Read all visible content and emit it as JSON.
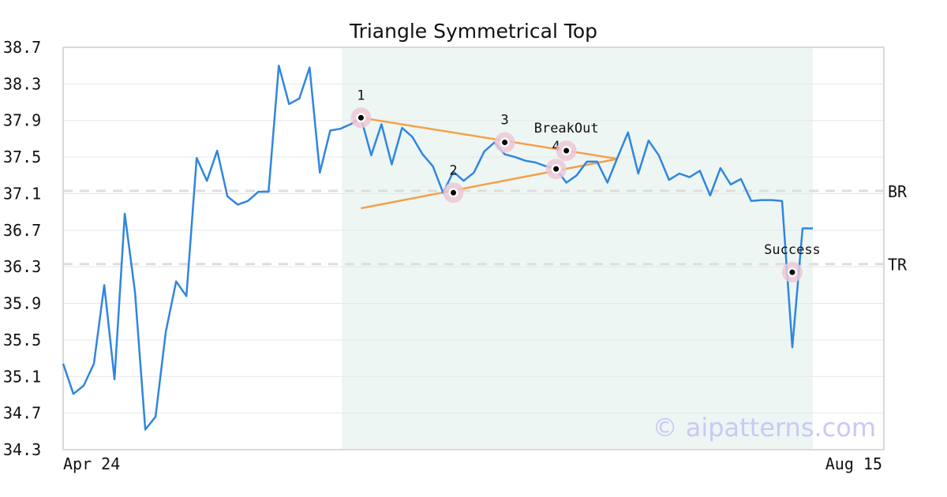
{
  "chart_data": {
    "type": "line",
    "title": "Triangle Symmetrical Top",
    "xlabel": "",
    "ylabel": "",
    "ylim": [
      34.3,
      38.7
    ],
    "y_ticks": [
      "34.3",
      "34.7",
      "35.1",
      "35.5",
      "35.9",
      "36.3",
      "36.7",
      "37.1",
      "37.5",
      "37.9",
      "38.3",
      "38.7"
    ],
    "x_tick_labels": [
      "Apr 24",
      "Aug 15"
    ],
    "grid": "horizontal",
    "highlight_range": [
      27,
      73
    ],
    "series": [
      {
        "values": [
          35.24,
          34.91,
          35.0,
          35.24,
          36.1,
          35.07,
          36.88,
          36.02,
          34.52,
          34.66,
          35.59,
          36.14,
          35.98,
          37.49,
          37.24,
          37.57,
          37.07,
          36.98,
          37.02,
          37.12,
          37.12,
          38.5,
          38.08,
          38.14,
          38.48,
          37.33,
          37.79,
          37.81,
          37.86,
          37.93,
          37.52,
          37.86,
          37.42,
          37.82,
          37.72,
          37.53,
          37.4,
          37.11,
          37.34,
          37.24,
          37.33,
          37.56,
          37.66,
          37.53,
          37.5,
          37.46,
          37.44,
          37.4,
          37.37,
          37.22,
          37.3,
          37.45,
          37.45,
          37.22,
          37.5,
          37.77,
          37.32,
          37.68,
          37.52,
          37.25,
          37.32,
          37.28,
          37.35,
          37.08,
          37.38,
          37.2,
          37.26,
          37.02,
          37.03,
          37.03,
          37.02,
          35.42,
          36.72,
          36.72
        ]
      }
    ],
    "trend_lines": [
      {
        "from": [
          29,
          37.93
        ],
        "to": [
          54,
          37.48
        ]
      },
      {
        "from": [
          29,
          36.94
        ],
        "to": [
          54,
          37.48
        ]
      }
    ],
    "points": [
      {
        "label": "1",
        "x": 29,
        "y": 37.93
      },
      {
        "label": "2",
        "x": 38,
        "y": 37.11
      },
      {
        "label": "3",
        "x": 43,
        "y": 37.66
      },
      {
        "label": "4",
        "x": 48,
        "y": 37.37
      },
      {
        "label": "BreakOut",
        "x": 49,
        "y": 37.57
      },
      {
        "label": "Success",
        "x": 71,
        "y": 36.24
      }
    ],
    "reference_lines": [
      {
        "label": "BR",
        "y": 37.13
      },
      {
        "label": "TR",
        "y": 36.33
      }
    ],
    "colors": {
      "line": "#2f86e0",
      "trend": "#f4a04c",
      "highlight": "#eef6f3",
      "grid": "#e6e6e6",
      "reference": "#dddddd",
      "marker_halo": "#ecc8d6",
      "frame": "#d9d9d9"
    },
    "watermark": "© aipatterns.com"
  }
}
